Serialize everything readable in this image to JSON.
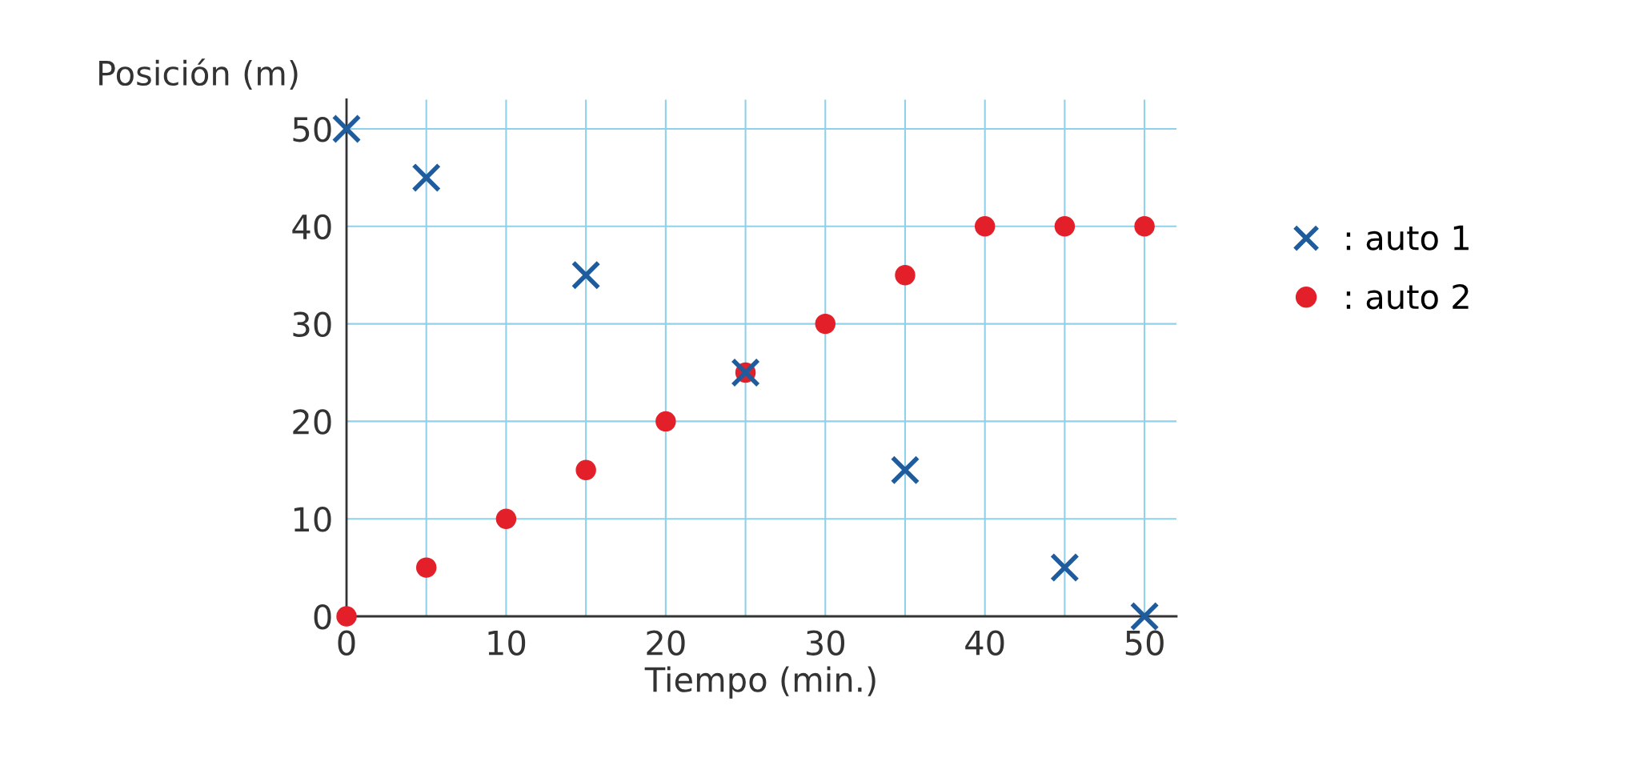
{
  "chart_data": {
    "type": "scatter",
    "xlabel": "Tiempo (min.)",
    "ylabel": "Posición (m)",
    "xlim": [
      0,
      52
    ],
    "ylim": [
      0,
      53
    ],
    "xticks": [
      0,
      {
        "value": 5,
        "label": null
      },
      10,
      {
        "value": 15,
        "label": null
      },
      20,
      {
        "value": 25,
        "label": null
      },
      30,
      {
        "value": 35,
        "label": null
      },
      40,
      {
        "value": 45,
        "label": null
      },
      50
    ],
    "yticks": [
      0,
      10,
      20,
      30,
      40,
      50
    ],
    "grid": true,
    "legend": "right",
    "series": [
      {
        "name": ": auto 1",
        "color": "#1f5c9e",
        "marker": "cross",
        "x": [
          0,
          5,
          15,
          25,
          35,
          45,
          50
        ],
        "values": [
          50,
          45,
          35,
          25,
          15,
          5,
          0
        ]
      },
      {
        "name": ": auto 2",
        "color": "#e3202a",
        "marker": "circle",
        "x": [
          0,
          5,
          10,
          15,
          20,
          25,
          30,
          35,
          40,
          45,
          50
        ],
        "values": [
          0,
          5,
          10,
          15,
          20,
          25,
          30,
          35,
          40,
          40,
          40
        ]
      }
    ]
  }
}
